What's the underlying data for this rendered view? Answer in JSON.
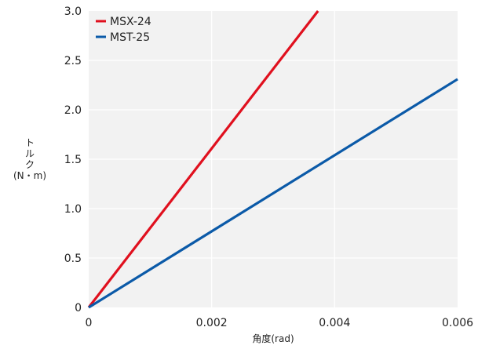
{
  "chart_data": {
    "type": "line",
    "xlabel": "角度(rad)",
    "ylabel": [
      "ト",
      "ル",
      "ク",
      "(N・m)"
    ],
    "xlim": [
      0,
      0.006
    ],
    "ylim": [
      0,
      3.0
    ],
    "x_ticks": [
      0,
      0.002,
      0.004,
      0.006
    ],
    "x_tick_labels": [
      "0",
      "0.002",
      "0.004",
      "0.006"
    ],
    "y_ticks": [
      0,
      0.5,
      1.0,
      1.5,
      2.0,
      2.5,
      3.0
    ],
    "y_tick_labels": [
      "0",
      "0.5",
      "1.0",
      "1.5",
      "2.0",
      "2.5",
      "3.0"
    ],
    "grid": true,
    "legend_position": "top-left",
    "series": [
      {
        "name": "MSX-24",
        "color": "#e0101e",
        "x": [
          0,
          0.00373
        ],
        "y": [
          0,
          3.0
        ]
      },
      {
        "name": "MST-25",
        "color": "#0b5aa8",
        "x": [
          0,
          0.006
        ],
        "y": [
          0,
          2.31
        ]
      }
    ]
  }
}
